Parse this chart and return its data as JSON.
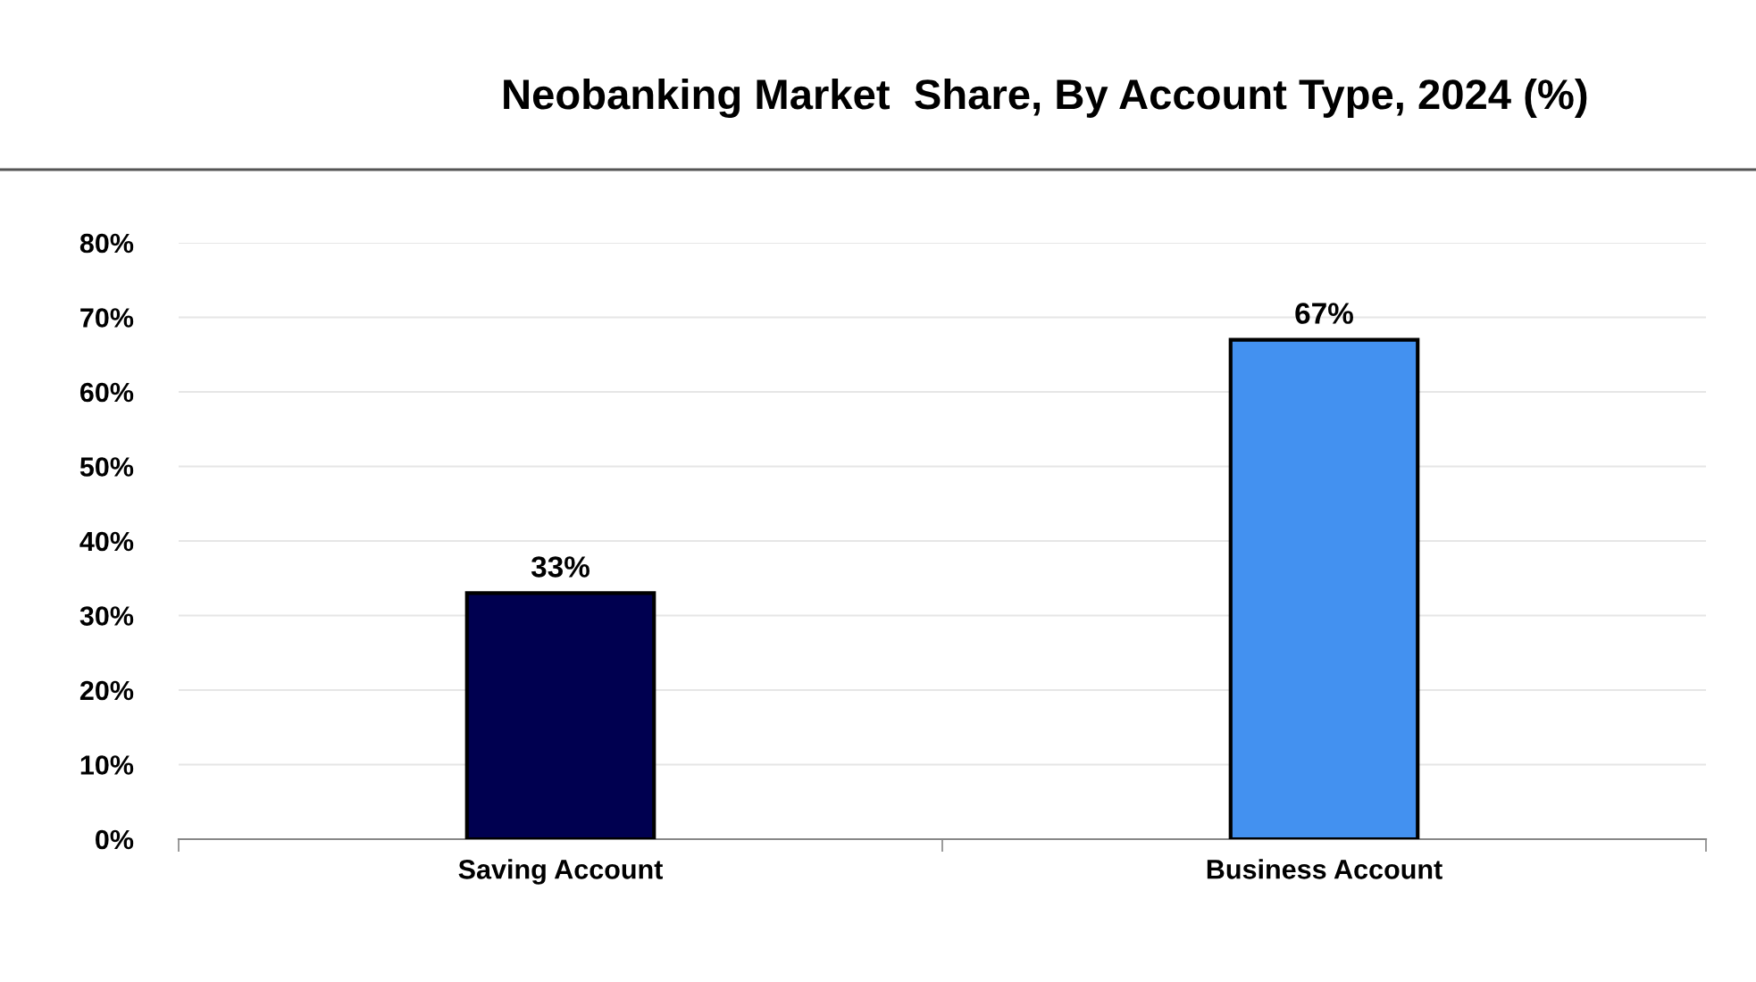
{
  "chart_data": {
    "type": "bar",
    "title": "Neobanking Market  Share, By Account Type, 2024 (%)",
    "categories": [
      "Saving Account",
      "Business Account"
    ],
    "values": [
      33,
      67
    ],
    "colors": [
      "#000050",
      "#4391f0"
    ],
    "value_labels": [
      "33%",
      "67%"
    ],
    "ylim": [
      0,
      80
    ],
    "yticks": [
      {
        "value": 0,
        "label": "0%"
      },
      {
        "value": 10,
        "label": "10%"
      },
      {
        "value": 20,
        "label": "20%"
      },
      {
        "value": 30,
        "label": "30%"
      },
      {
        "value": 40,
        "label": "40%"
      },
      {
        "value": 50,
        "label": "50%"
      },
      {
        "value": 60,
        "label": "60%"
      },
      {
        "value": 70,
        "label": "70%"
      },
      {
        "value": 80,
        "label": "80%"
      }
    ],
    "grid": "y"
  }
}
